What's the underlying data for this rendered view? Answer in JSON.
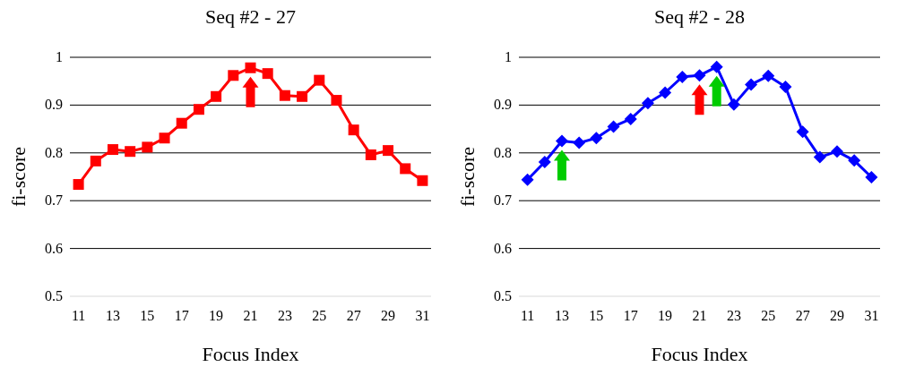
{
  "chart_data": [
    {
      "type": "line",
      "title": "Seq #2 - 27",
      "xlabel": "Focus Index",
      "ylabel": "fi-score",
      "categories": [
        "11",
        null,
        "13",
        null,
        "15",
        null,
        "17",
        null,
        "19",
        null,
        "21",
        null,
        "23",
        null,
        "25",
        null,
        "27",
        null,
        "29",
        null,
        "31"
      ],
      "series": [
        {
          "color": "#ff0000",
          "values": [
            0.734,
            0.783,
            0.807,
            0.803,
            0.812,
            0.831,
            0.862,
            0.891,
            0.918,
            0.962,
            0.978,
            0.966,
            0.92,
            0.918,
            0.952,
            0.91,
            0.848,
            0.796,
            0.805,
            0.767,
            0.742
          ]
        }
      ],
      "ylim": [
        0.5,
        1
      ],
      "yticks": [
        0.5,
        0.6,
        0.7,
        0.8,
        0.9,
        1
      ],
      "grid": "y",
      "marker": "square"
    },
    {
      "type": "line",
      "title": "Seq #2 - 28",
      "xlabel": "Focus Index",
      "ylabel": "fi-score",
      "categories": [
        "11",
        null,
        "13",
        null,
        "15",
        null,
        "17",
        null,
        "19",
        null,
        "21",
        null,
        "23",
        null,
        "25",
        null,
        "27",
        null,
        "29",
        null,
        "31"
      ],
      "series": [
        {
          "color": "#0000ff",
          "values": [
            0.744,
            0.781,
            0.825,
            0.821,
            0.831,
            0.855,
            0.871,
            0.904,
            0.926,
            0.959,
            0.962,
            0.98,
            0.901,
            0.943,
            0.961,
            0.938,
            0.844,
            0.791,
            0.803,
            0.784,
            0.749
          ]
        }
      ],
      "ylim": [
        0.5,
        1
      ],
      "yticks": [
        0.5,
        0.6,
        0.7,
        0.8,
        0.9,
        1
      ],
      "grid": "y",
      "marker": "diamond"
    }
  ]
}
